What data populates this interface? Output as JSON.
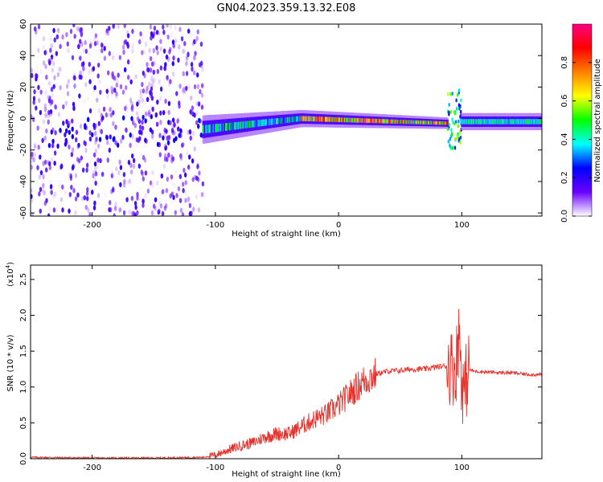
{
  "chart_data": [
    {
      "type": "heatmap",
      "title": "GN04.2023.359.13.32.E08",
      "xlabel": "Height of straight line (km)",
      "ylabel": "Frequency (Hz)",
      "xlim": [
        -250,
        165
      ],
      "ylim": [
        -62,
        60
      ],
      "xticks": [
        -200,
        -100,
        0,
        100
      ],
      "xtick_labels": [
        "-200",
        "-100",
        "0",
        "100"
      ],
      "yticks": [
        60,
        40,
        20,
        0,
        -20,
        -40,
        -60
      ],
      "ytick_labels": [
        "60",
        "40",
        "20",
        "0",
        "-20",
        "-40",
        "-60"
      ],
      "colorbar": {
        "label": "Normalized spectral amplitude",
        "range": [
          0,
          1
        ],
        "ticks": [
          0.0,
          0.2,
          0.4,
          0.6,
          0.8
        ],
        "tick_labels": [
          "0.0",
          "0.2",
          "0.4",
          "0.6",
          "0.8"
        ],
        "colormap": [
          "#ffffff",
          "#6b00ff",
          "#0000ff",
          "#00ffff",
          "#00ff00",
          "#ffff00",
          "#ff8000",
          "#ff0000",
          "#ff0080"
        ]
      },
      "regions": [
        {
          "x_range": [
            -250,
            -110
          ],
          "freq_range": [
            -62,
            60
          ],
          "amplitude": [
            0.0,
            0.2
          ],
          "pattern": "broadband noise"
        },
        {
          "x_range": [
            -110,
            -30
          ],
          "center_freq": [
            -7,
            0
          ],
          "half_width": [
            5,
            3
          ],
          "amplitude": [
            0.2,
            0.5
          ]
        },
        {
          "x_range": [
            -30,
            88
          ],
          "center_freq": [
            0,
            -3
          ],
          "half_width": [
            3,
            2
          ],
          "amplitude": [
            0.4,
            1.0
          ]
        },
        {
          "x_range": [
            88,
            100
          ],
          "freq_range": [
            -20,
            20
          ],
          "amplitude": [
            0.2,
            0.6
          ],
          "pattern": "vertical streak"
        },
        {
          "x_range": [
            100,
            165
          ],
          "center_freq": [
            -2,
            -2
          ],
          "half_width": [
            3,
            3
          ],
          "amplitude": [
            0.3,
            0.5
          ]
        }
      ]
    },
    {
      "type": "line",
      "xlabel": "Height of straight line (km)",
      "ylabel": "SNR (10 * v/v)",
      "scale_label": "(x10",
      "scale_exp": "4",
      "scale_close": ")",
      "xlim": [
        -250,
        165
      ],
      "ylim": [
        0,
        2.7
      ],
      "xticks": [
        -200,
        -100,
        0,
        100
      ],
      "xtick_labels": [
        "-200",
        "-100",
        "0",
        "100"
      ],
      "yticks": [
        0.0,
        0.5,
        1.0,
        1.5,
        2.0,
        2.5
      ],
      "ytick_labels": [
        "0.0",
        "0.5",
        "1.0",
        "1.5",
        "2.0",
        "2.5"
      ],
      "line_color": "#e8302a",
      "series": [
        {
          "x": [
            -250,
            -200,
            -150,
            -110,
            -100,
            -90,
            -80,
            -70,
            -60,
            -50,
            -40,
            -30,
            -20,
            -10,
            0,
            10,
            20,
            30,
            40,
            50,
            60,
            70,
            80,
            90,
            95,
            98,
            100,
            102,
            105,
            110,
            120,
            130,
            140,
            150,
            165
          ],
          "values": [
            0.02,
            0.01,
            0.01,
            0.02,
            0.05,
            0.12,
            0.18,
            0.22,
            0.3,
            0.35,
            0.35,
            0.45,
            0.55,
            0.62,
            0.75,
            0.92,
            1.08,
            1.18,
            1.22,
            1.23,
            1.25,
            1.25,
            1.28,
            1.3,
            1.25,
            1.8,
            1.1,
            0.9,
            1.25,
            1.22,
            1.21,
            1.2,
            1.2,
            1.18,
            1.17
          ]
        }
      ]
    }
  ]
}
